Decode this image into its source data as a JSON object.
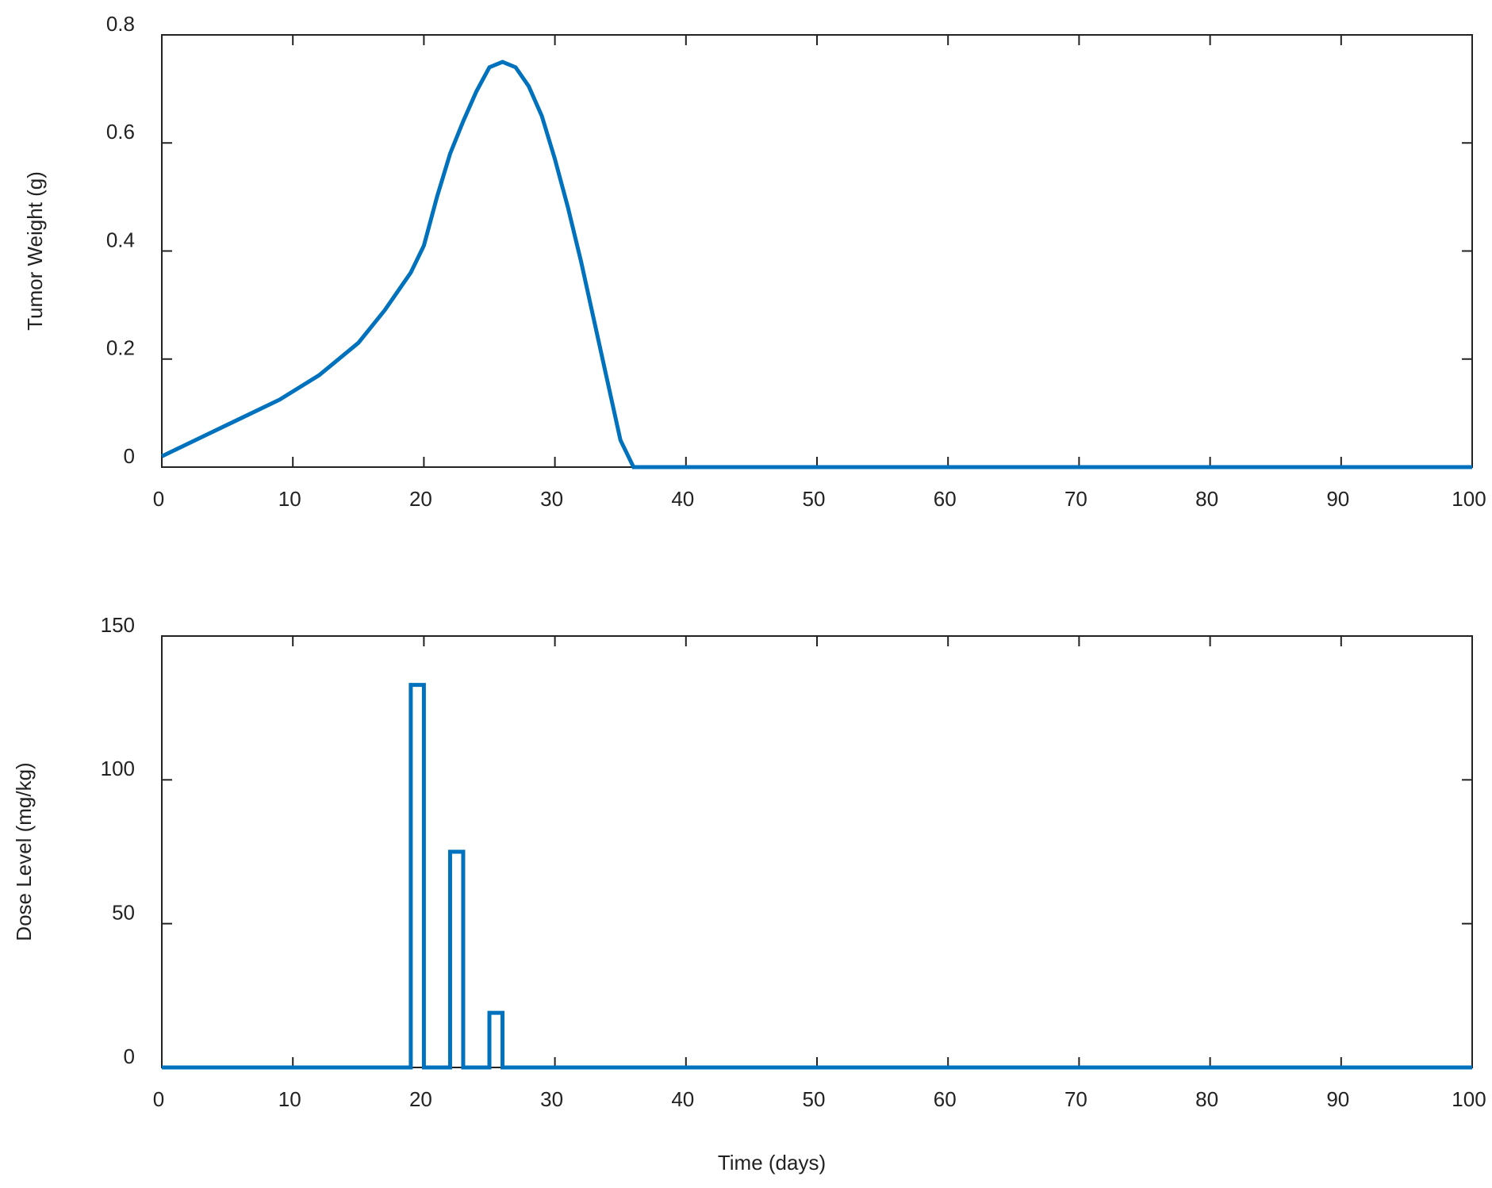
{
  "chart_data": [
    {
      "type": "line",
      "ylabel": "Tumor Weight (g)",
      "x": [
        0,
        3,
        6,
        9,
        12,
        15,
        17,
        19,
        20,
        21,
        22,
        23,
        24,
        25,
        26,
        27,
        28,
        29,
        30,
        31,
        32,
        33,
        34,
        35,
        36,
        40,
        60,
        80,
        100
      ],
      "series": [
        {
          "color": "#0072bd",
          "values": [
            0.02,
            0.055,
            0.09,
            0.125,
            0.17,
            0.23,
            0.29,
            0.36,
            0.41,
            0.5,
            0.58,
            0.64,
            0.695,
            0.74,
            0.75,
            0.74,
            0.705,
            0.65,
            0.57,
            0.48,
            0.38,
            0.27,
            0.16,
            0.05,
            0,
            0,
            0,
            0,
            0
          ]
        }
      ],
      "xlim": [
        0,
        100
      ],
      "xticks": [
        0,
        10,
        20,
        30,
        40,
        50,
        60,
        70,
        80,
        90,
        100
      ],
      "ylim": [
        0,
        0.8
      ],
      "yticks": [
        0,
        0.2,
        0.4,
        0.6,
        0.8
      ],
      "grid": false
    },
    {
      "type": "line",
      "ylabel": "Dose Level (mg/kg)",
      "xlabel": "Time (days)",
      "x": [
        0,
        19,
        19,
        20,
        20,
        22,
        22,
        23,
        23,
        25,
        25,
        26,
        26,
        100
      ],
      "series": [
        {
          "color": "#0072bd",
          "values": [
            0,
            0,
            133,
            133,
            0,
            0,
            75,
            75,
            0,
            0,
            19,
            19,
            0,
            0
          ]
        }
      ],
      "xlim": [
        0,
        100
      ],
      "xticks": [
        0,
        10,
        20,
        30,
        40,
        50,
        60,
        70,
        80,
        90,
        100
      ],
      "ylim": [
        0,
        150
      ],
      "yticks": [
        0,
        50,
        100,
        150
      ],
      "grid": false
    }
  ]
}
